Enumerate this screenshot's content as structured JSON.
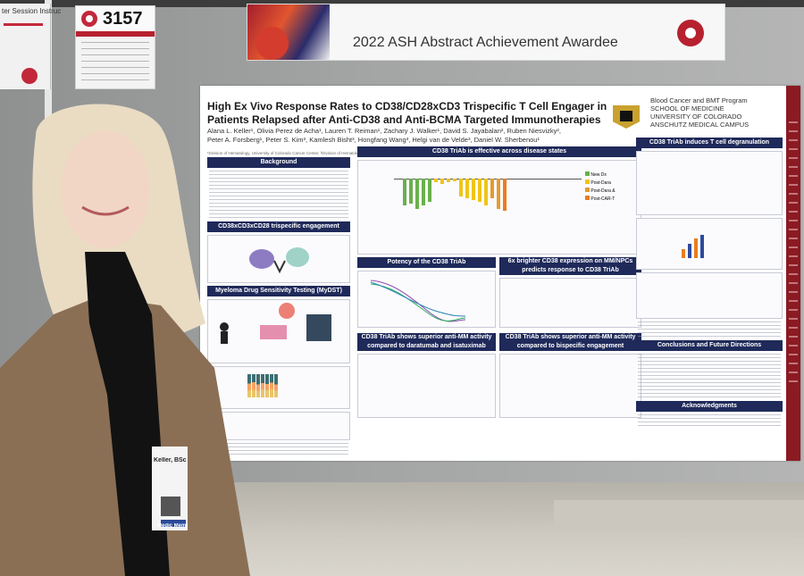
{
  "scene": {
    "number_card": "3157",
    "banner_title": "2022 ASH Abstract Achievement Awardee",
    "neighbor_sign": "ter Session Instruc",
    "badge_text": "Keller, BSc",
    "badge_sub": "Medic Member"
  },
  "poster": {
    "title_line1": "High Ex Vivo Response Rates to CD38/CD28xCD3 Trispecific T Cell Engager in",
    "title_line2": "Patients Relapsed after Anti-CD38 and Anti-BCMA Targeted Immunotherapies",
    "authors_line1": "Alana L. Keller¹, Olivia Perez de Acha¹, Lauren T. Reiman¹, Zachary J. Walker¹, David S. Jayabalan², Ruben Niesvizky²,",
    "authors_line2": "Peter A. Forsberg¹, Peter S. Kim³, Kamlesh Bisht³, Hongfang Wang³, Helgi van de Velde³, Daniel W. Sherbenou¹",
    "affiliations": "¹Division of Hematology, University of Colorado Cancer Center, ²Division of Hematology and Medical Oncology, Weill Cornell Medicine / New York Presbyterian, ³Sanofi Oncology Development, Cambridge, MA USA",
    "institution_line1": "Blood Cancer and BMT Program",
    "institution_line2": "SCHOOL OF MEDICINE",
    "institution_line3": "UNIVERSITY OF COLORADO",
    "institution_line4": "ANSCHUTZ MEDICAL CAMPUS",
    "sections": {
      "background": "Background",
      "trispecific": "CD38xCD3xCD28 trispecific engagement",
      "mydst": "Myeloma Drug Sensitivity Testing (MyDST)",
      "effective": "CD38 TriAb is effective across disease states",
      "potency": "Potency of the CD38 TriAb",
      "brighter": "6x brighter CD38 expression on MM/NPCs predicts response to CD38 TriAb",
      "superior_dara": "CD38 TriAb shows superior anti-MM activity compared to daratumab and isatuximab",
      "superior_bispec": "CD38 TriAb shows superior anti-MM activity compared to bispecific engagement",
      "degranulation": "CD38 TriAb induces T cell degranulation",
      "conclusions": "Conclusions and Future Directions",
      "acknowledgments": "Acknowledgments"
    },
    "legend_disease": [
      "New Dx",
      "Post-Dara",
      "Post-Dara &",
      "Post-CAR-T"
    ],
    "colors": {
      "header_navy": "#1f2a5a",
      "new_dx": "#6ab04c",
      "post_dara": "#f0c419",
      "post_dara_and": "#e69a2e",
      "post_cart": "#e67e22",
      "poster_accent": "#8c1a22"
    }
  }
}
